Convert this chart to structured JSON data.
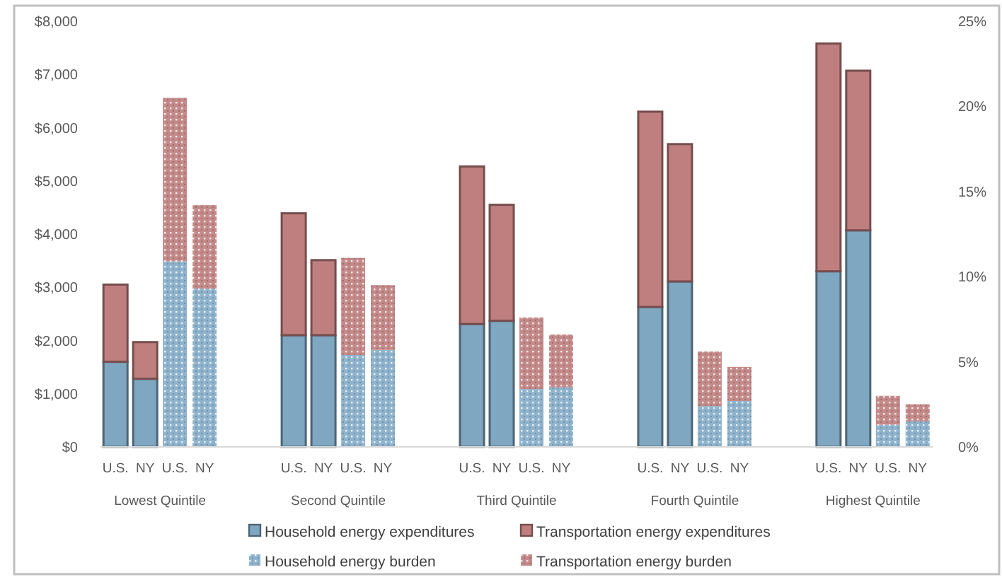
{
  "chart_data": {
    "type": "bar",
    "stacked": true,
    "categories": [
      "U.S.",
      "NY",
      "U.S.",
      "NY",
      null,
      null,
      "U.S.",
      "NY",
      "U.S.",
      "NY",
      null,
      null,
      "U.S.",
      "NY",
      "U.S.",
      "NY",
      null,
      null,
      "U.S.",
      "NY",
      "U.S.",
      "NY",
      null,
      null,
      "U.S.",
      "NY",
      "U.S.",
      "NY"
    ],
    "series": [
      {
        "name": "Household energy expenditures",
        "color": "#7fa7c1",
        "values": [
          1600,
          1280,
          null,
          null,
          null,
          null,
          2100,
          2100,
          null,
          null,
          null,
          null,
          2310,
          2370,
          null,
          null,
          null,
          null,
          2630,
          3110,
          null,
          null,
          null,
          null,
          3300,
          4070,
          null,
          null
        ]
      },
      {
        "name": "Transportation energy expenditures",
        "color": "#c07f7f",
        "values": [
          1450,
          690,
          null,
          null,
          null,
          null,
          2290,
          1410,
          null,
          null,
          null,
          null,
          2960,
          2180,
          null,
          null,
          null,
          null,
          3670,
          2580,
          null,
          null,
          null,
          null,
          4280,
          3000,
          null,
          null
        ]
      },
      {
        "name": "Household energy burden",
        "color": "#8fb3cc",
        "axis": "y2",
        "values": [
          null,
          null,
          10.9,
          9.3,
          null,
          null,
          null,
          null,
          5.4,
          5.7,
          null,
          null,
          null,
          null,
          3.4,
          3.5,
          null,
          null,
          null,
          null,
          2.4,
          2.7,
          null,
          null,
          null,
          null,
          1.3,
          1.5
        ]
      },
      {
        "name": "Transportation energy burden",
        "color": "#c48a8a",
        "axis": "y2",
        "values": [
          null,
          null,
          9.6,
          4.9,
          null,
          null,
          null,
          null,
          5.7,
          3.8,
          null,
          null,
          null,
          null,
          4.2,
          3.1,
          null,
          null,
          null,
          null,
          3.2,
          2.0,
          null,
          null,
          null,
          null,
          1.7,
          1.0
        ]
      }
    ],
    "ylim": [
      0,
      8000
    ],
    "yticks": [
      {
        "value": 0,
        "label": "$0"
      },
      {
        "value": 1000,
        "label": "$1,000"
      },
      {
        "value": 2000,
        "label": "$2,000"
      },
      {
        "value": 3000,
        "label": "$3,000"
      },
      {
        "value": 4000,
        "label": "$4,000"
      },
      {
        "value": 5000,
        "label": "$5,000"
      },
      {
        "value": 6000,
        "label": "$6,000"
      },
      {
        "value": 7000,
        "label": "$7,000"
      },
      {
        "value": 8000,
        "label": "$8,000"
      }
    ],
    "y2lim": [
      0,
      25
    ],
    "y2ticks": [
      {
        "value": 0,
        "label": "0%"
      },
      {
        "value": 5,
        "label": "5%"
      },
      {
        "value": 10,
        "label": "10%"
      },
      {
        "value": 15,
        "label": "15%"
      },
      {
        "value": 20,
        "label": "20%"
      },
      {
        "value": 25,
        "label": "25%"
      }
    ],
    "annotations": [
      "Lowest Quintile",
      "Second Quintile",
      "Third Quintile",
      "Fourth Quintile",
      "Highest Quintile"
    ],
    "legend": "bottom",
    "grid": false
  }
}
